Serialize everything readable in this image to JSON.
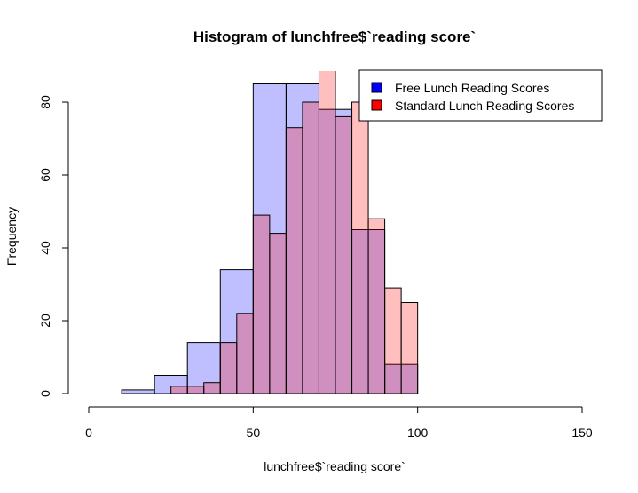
{
  "chart_data": {
    "type": "bar",
    "title": "Histogram of lunchfree$`reading score`",
    "xlabel": "lunchfree$`reading score`",
    "ylabel": "Frequency",
    "xlim": [
      0,
      150
    ],
    "ylim": [
      0,
      85
    ],
    "x_ticks": [
      0,
      50,
      100,
      150
    ],
    "y_ticks": [
      0,
      20,
      40,
      60,
      80
    ],
    "grid": false,
    "legend_position": "top-right",
    "series": [
      {
        "name": "Free Lunch Reading Scores",
        "color": "#0000ff",
        "fill": "rgba(0,0,255,0.25)",
        "bins": [
          {
            "from": 10,
            "to": 20,
            "count": 1
          },
          {
            "from": 20,
            "to": 30,
            "count": 5
          },
          {
            "from": 30,
            "to": 40,
            "count": 14
          },
          {
            "from": 40,
            "to": 50,
            "count": 34
          },
          {
            "from": 50,
            "to": 60,
            "count": 85
          },
          {
            "from": 60,
            "to": 70,
            "count": 85
          },
          {
            "from": 70,
            "to": 80,
            "count": 78
          },
          {
            "from": 80,
            "to": 90,
            "count": 45
          },
          {
            "from": 90,
            "to": 100,
            "count": 8
          }
        ]
      },
      {
        "name": "Standard Lunch Reading Scores",
        "color": "#ff0000",
        "fill": "rgba(255,0,0,0.25)",
        "bins": [
          {
            "from": 25,
            "to": 30,
            "count": 2
          },
          {
            "from": 30,
            "to": 35,
            "count": 2
          },
          {
            "from": 35,
            "to": 40,
            "count": 3
          },
          {
            "from": 40,
            "to": 45,
            "count": 14
          },
          {
            "from": 45,
            "to": 50,
            "count": 22
          },
          {
            "from": 50,
            "to": 55,
            "count": 49
          },
          {
            "from": 55,
            "to": 60,
            "count": 44
          },
          {
            "from": 60,
            "to": 65,
            "count": 73
          },
          {
            "from": 65,
            "to": 70,
            "count": 80
          },
          {
            "from": 70,
            "to": 75,
            "count": 93
          },
          {
            "from": 75,
            "to": 80,
            "count": 76
          },
          {
            "from": 80,
            "to": 85,
            "count": 80
          },
          {
            "from": 85,
            "to": 90,
            "count": 48
          },
          {
            "from": 90,
            "to": 95,
            "count": 29
          },
          {
            "from": 95,
            "to": 100,
            "count": 25
          }
        ]
      }
    ]
  }
}
